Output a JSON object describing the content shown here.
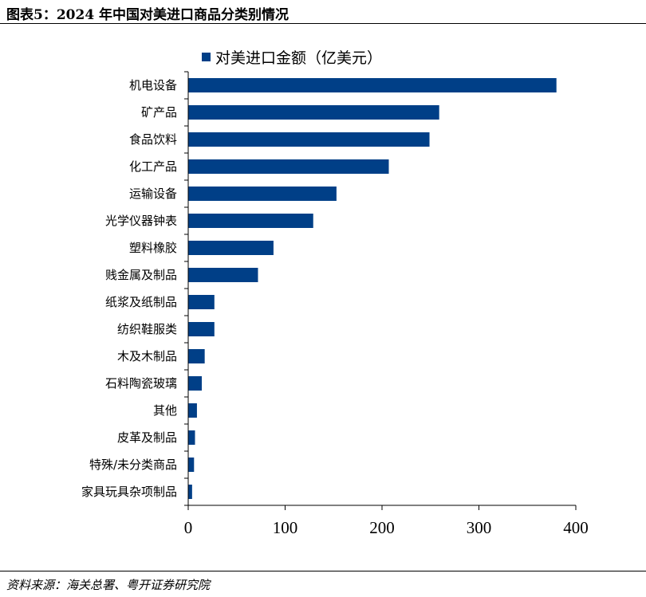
{
  "title": "图表5：2024 年中国对美进口商品分类别情况",
  "source": "资料来源：海关总署、粤开证券研究院",
  "colors": {
    "bar": "#003F87",
    "axis": "#000000"
  },
  "chart_data": {
    "type": "bar",
    "orientation": "horizontal",
    "title": "",
    "xlabel": "",
    "ylabel": "",
    "categories": [
      "机电设备",
      "矿产品",
      "食品饮料",
      "化工产品",
      "运输设备",
      "光学仪器钟表",
      "塑料橡胶",
      "贱金属及制品",
      "纸浆及纸制品",
      "纺织鞋服类",
      "木及木制品",
      "石料陶瓷玻璃",
      "其他",
      "皮革及制品",
      "特殊/未分类商品",
      "家具玩具杂项制品"
    ],
    "series": [
      {
        "name": "对美进口金额（亿美元）",
        "values": [
          380,
          259,
          249,
          207,
          153,
          129,
          88,
          72,
          27,
          27,
          17,
          14,
          9,
          7,
          6,
          4
        ]
      }
    ],
    "xlim": [
      0,
      400
    ],
    "xticks": [
      0,
      100,
      200,
      300,
      400
    ],
    "grid": false,
    "legend": "top"
  }
}
